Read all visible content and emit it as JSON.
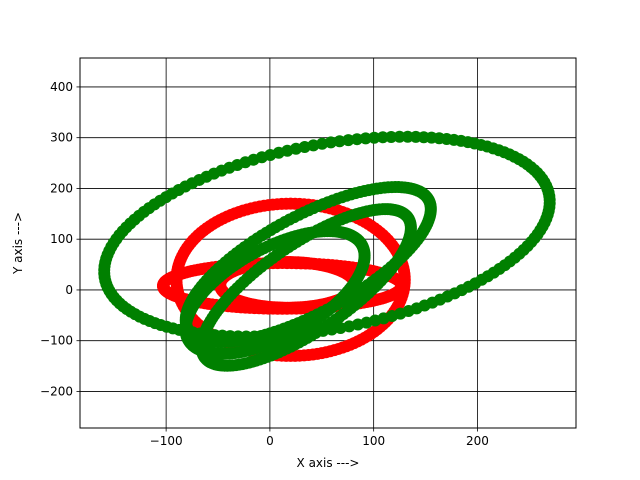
{
  "chart_data": {
    "type": "scatter",
    "title": "",
    "xlabel": "X axis --->",
    "ylabel": "Y axis --->",
    "xlim": [
      -183,
      295
    ],
    "ylim": [
      -272,
      457
    ],
    "grid": true,
    "grid_color": "#000000",
    "x_ticks": [
      -100,
      0,
      100,
      200
    ],
    "x_tick_labels": [
      "−100",
      "0",
      "100",
      "200"
    ],
    "y_ticks": [
      -200,
      -100,
      0,
      100,
      200,
      300,
      400
    ],
    "y_tick_labels": [
      "−200",
      "−100",
      "0",
      "100",
      "200",
      "300",
      "400"
    ],
    "series": [
      {
        "color": "#ff0000",
        "shape": "ellipse",
        "center": [
          20,
          20
        ],
        "radius_x": 110,
        "radius_y": 150,
        "rotation_deg": 0
      },
      {
        "color": "#ff0000",
        "shape": "ellipse",
        "center": [
          12,
          8
        ],
        "radius_x": 115,
        "radius_y": 45,
        "rotation_deg": 0
      },
      {
        "color": "#ff0000",
        "shape": "ellipse",
        "center": [
          17,
          10
        ],
        "radius_x": 65,
        "radius_y": 45,
        "rotation_deg": 0
      },
      {
        "color": "#008000",
        "shape": "ellipse",
        "center": [
          55,
          105
        ],
        "radius_x": 240,
        "radius_y": 165,
        "rotation_deg": 38
      },
      {
        "color": "#008000",
        "shape": "ellipse",
        "center": [
          37,
          50
        ],
        "radius_x": 180,
        "radius_y": 70,
        "rotation_deg": 55
      },
      {
        "color": "#008000",
        "shape": "ellipse",
        "center": [
          35,
          5
        ],
        "radius_x": 175,
        "radius_y": 58,
        "rotation_deg": 60
      },
      {
        "color": "#008000",
        "shape": "ellipse",
        "center": [
          5,
          -5
        ],
        "radius_x": 135,
        "radius_y": 62,
        "rotation_deg": 60
      }
    ]
  }
}
